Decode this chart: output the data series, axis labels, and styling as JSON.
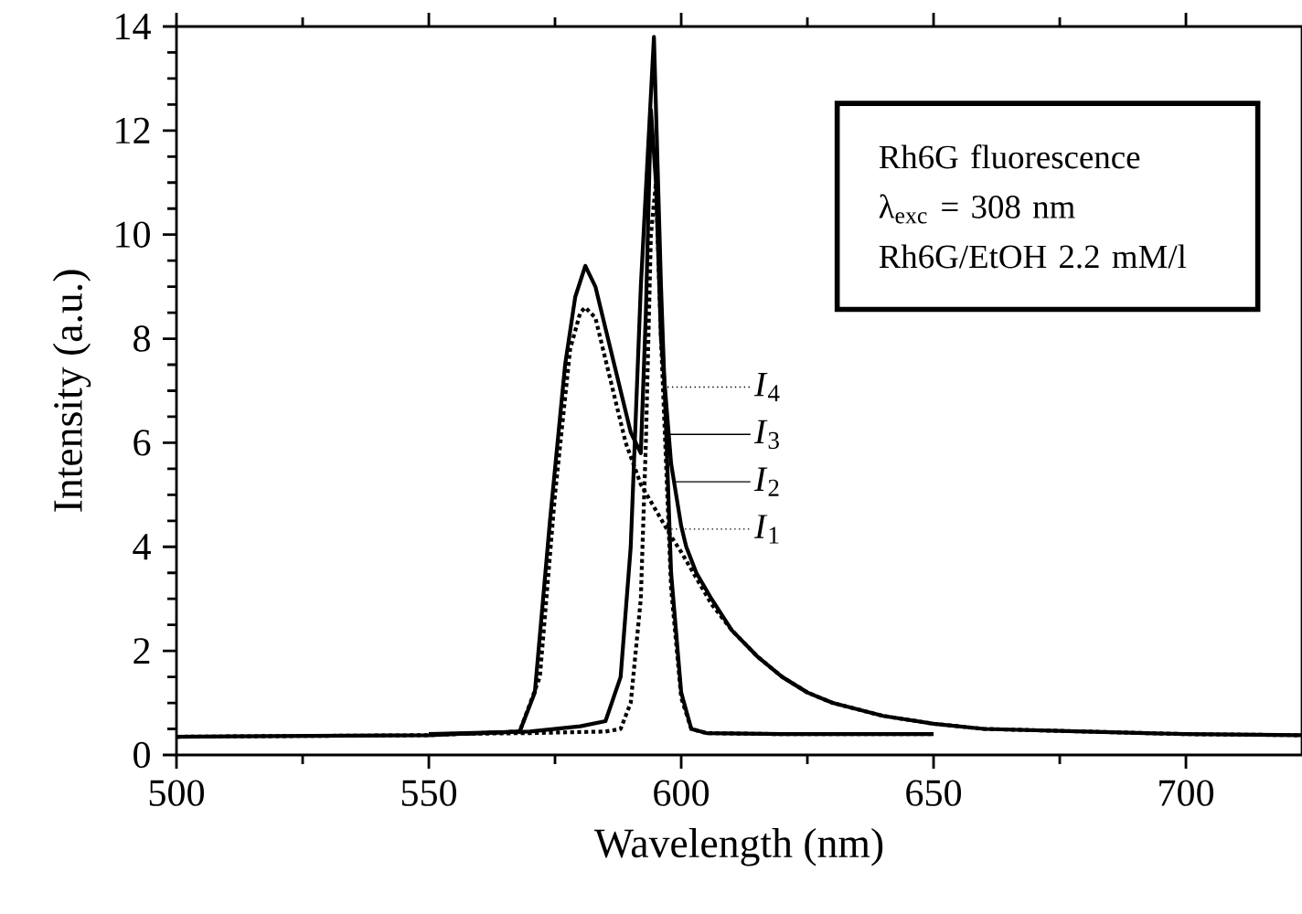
{
  "chart_data": {
    "type": "line",
    "xlabel": "Wavelength (nm)",
    "ylabel": "Intensity (a.u.)",
    "xlim": [
      500,
      723
    ],
    "ylim": [
      0,
      14
    ],
    "xticks": [
      500,
      550,
      600,
      650,
      700
    ],
    "yticks": [
      0,
      2,
      4,
      6,
      8,
      10,
      12,
      14
    ],
    "grid": false,
    "legend": "right",
    "series": [
      {
        "name": "*I*$_{1}$",
        "color": "#000000",
        "line_style": "dotted",
        "x": [
          500,
          550,
          568,
          572,
          575,
          578,
          580,
          581,
          583,
          586,
          589,
          592,
          595,
          598,
          600,
          603,
          606,
          610,
          615,
          620,
          625,
          630,
          640,
          650,
          660,
          680,
          700,
          723
        ],
        "values": [
          0.35,
          0.38,
          0.45,
          1.5,
          5.0,
          7.8,
          8.5,
          8.6,
          8.4,
          7.2,
          6.0,
          5.2,
          4.7,
          4.2,
          3.9,
          3.4,
          2.9,
          2.4,
          1.9,
          1.5,
          1.2,
          1.0,
          0.75,
          0.6,
          0.5,
          0.45,
          0.4,
          0.38
        ]
      },
      {
        "name": "*I*$_{2}$",
        "color": "#000000",
        "line_style": "solid",
        "x": [
          500,
          550,
          568,
          571,
          574,
          577,
          579,
          581,
          583,
          585,
          588,
          590,
          592,
          593,
          594,
          595,
          596,
          598,
          600,
          601,
          603,
          606,
          610,
          615,
          620,
          625,
          630,
          640,
          650,
          660,
          680,
          700,
          723
        ],
        "values": [
          0.35,
          0.38,
          0.45,
          1.2,
          4.5,
          7.5,
          8.8,
          9.4,
          9.0,
          8.2,
          7.0,
          6.2,
          5.8,
          8.5,
          12.4,
          11.0,
          8.0,
          5.6,
          4.4,
          4.0,
          3.5,
          3.0,
          2.4,
          1.9,
          1.5,
          1.2,
          1.0,
          0.75,
          0.6,
          0.5,
          0.45,
          0.4,
          0.38
        ]
      },
      {
        "name": "*I*$_{3}$",
        "color": "#000000",
        "line_style": "solid",
        "x": [
          550,
          570,
          580,
          585,
          588,
          590,
          592,
          594.6,
          596,
          598,
          600,
          602,
          605,
          620,
          650
        ],
        "values": [
          0.4,
          0.45,
          0.55,
          0.65,
          1.5,
          4.0,
          9.0,
          13.8,
          9.0,
          3.5,
          1.2,
          0.5,
          0.42,
          0.4,
          0.4
        ]
      },
      {
        "name": "*I*$_{4}$",
        "color": "#000000",
        "line_style": "dotted",
        "x": [
          550,
          570,
          585,
          588,
          590,
          592,
          593,
          594,
          595,
          596,
          598,
          600,
          602,
          605,
          620,
          650
        ],
        "values": [
          0.4,
          0.42,
          0.45,
          0.5,
          1.0,
          3.0,
          6.0,
          10.0,
          11.0,
          8.0,
          3.2,
          1.1,
          0.5,
          0.42,
          0.4,
          0.4
        ]
      }
    ],
    "annotations": [
      "Rh6G fluorescence",
      "λ$_{exc}$ = 308 nm",
      "Rh6G/EtOH 2.2 mM/l"
    ]
  }
}
